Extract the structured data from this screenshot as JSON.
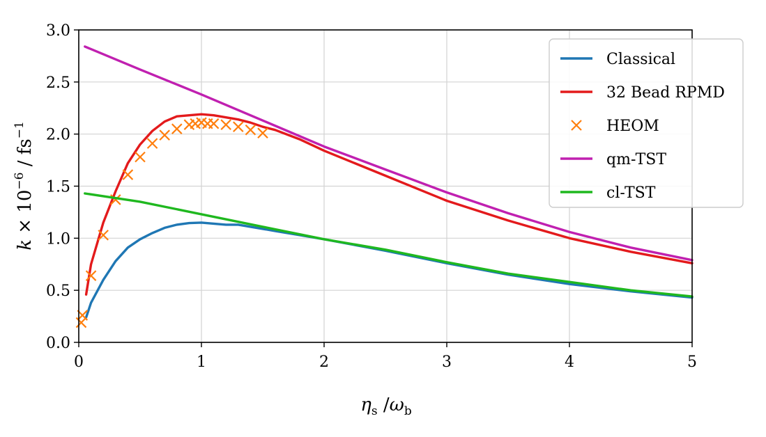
{
  "chart_data": {
    "type": "line",
    "xlabel": "ηs /ωb",
    "ylabel": "k × 10^-6 / fs^-1",
    "xlim": [
      0,
      5
    ],
    "ylim": [
      0.0,
      3.0
    ],
    "xticks": [
      "0",
      "1",
      "2",
      "3",
      "4",
      "5"
    ],
    "yticks": [
      "0.0",
      "0.5",
      "1.0",
      "1.5",
      "2.0",
      "2.5",
      "3.0"
    ],
    "grid": true,
    "legend_position": "top-right",
    "series": [
      {
        "name": "Classical",
        "style": "line",
        "color": "#1f77b4",
        "x": [
          0.06,
          0.1,
          0.2,
          0.3,
          0.4,
          0.5,
          0.6,
          0.7,
          0.8,
          0.9,
          1.0,
          1.1,
          1.2,
          1.3,
          1.4,
          1.5,
          1.6,
          1.8,
          2.0,
          2.5,
          3.0,
          3.5,
          4.0,
          4.5,
          5.0
        ],
        "y": [
          0.24,
          0.38,
          0.6,
          0.78,
          0.91,
          0.99,
          1.05,
          1.1,
          1.13,
          1.145,
          1.15,
          1.14,
          1.13,
          1.13,
          1.11,
          1.09,
          1.07,
          1.03,
          0.99,
          0.88,
          0.76,
          0.65,
          0.56,
          0.49,
          0.43
        ]
      },
      {
        "name": "32 Bead RPMD",
        "style": "line",
        "color": "#e31a1c",
        "x": [
          0.06,
          0.1,
          0.2,
          0.3,
          0.4,
          0.5,
          0.6,
          0.7,
          0.8,
          0.9,
          1.0,
          1.1,
          1.2,
          1.3,
          1.4,
          1.5,
          1.6,
          1.8,
          2.0,
          2.5,
          3.0,
          3.5,
          4.0,
          4.5,
          5.0
        ],
        "y": [
          0.46,
          0.75,
          1.15,
          1.45,
          1.72,
          1.9,
          2.03,
          2.12,
          2.17,
          2.18,
          2.19,
          2.18,
          2.16,
          2.14,
          2.11,
          2.07,
          2.04,
          1.95,
          1.84,
          1.6,
          1.36,
          1.17,
          1.0,
          0.87,
          0.76
        ]
      },
      {
        "name": "HEOM",
        "style": "marker",
        "marker": "x",
        "color": "#ff7f0e",
        "x": [
          0.02,
          0.03,
          0.1,
          0.2,
          0.3,
          0.4,
          0.5,
          0.6,
          0.7,
          0.8,
          0.9,
          0.95,
          1.0,
          1.05,
          1.1,
          1.2,
          1.3,
          1.4,
          1.5
        ],
        "y": [
          0.19,
          0.26,
          0.64,
          1.03,
          1.37,
          1.61,
          1.78,
          1.91,
          1.99,
          2.05,
          2.09,
          2.1,
          2.11,
          2.1,
          2.1,
          2.09,
          2.07,
          2.04,
          2.01
        ]
      },
      {
        "name": "qm-TST",
        "style": "line",
        "color": "#c020b0",
        "x": [
          0.05,
          0.5,
          1.0,
          1.5,
          2.0,
          2.5,
          3.0,
          3.5,
          4.0,
          4.5,
          5.0
        ],
        "y": [
          2.84,
          2.62,
          2.38,
          2.13,
          1.88,
          1.66,
          1.44,
          1.24,
          1.06,
          0.91,
          0.79
        ]
      },
      {
        "name": "cl-TST",
        "style": "line",
        "color": "#1fb81f",
        "x": [
          0.05,
          0.5,
          1.0,
          1.5,
          2.0,
          2.5,
          3.0,
          3.5,
          4.0,
          4.5,
          5.0
        ],
        "y": [
          1.43,
          1.35,
          1.23,
          1.11,
          0.99,
          0.89,
          0.77,
          0.66,
          0.58,
          0.5,
          0.44
        ]
      }
    ]
  }
}
